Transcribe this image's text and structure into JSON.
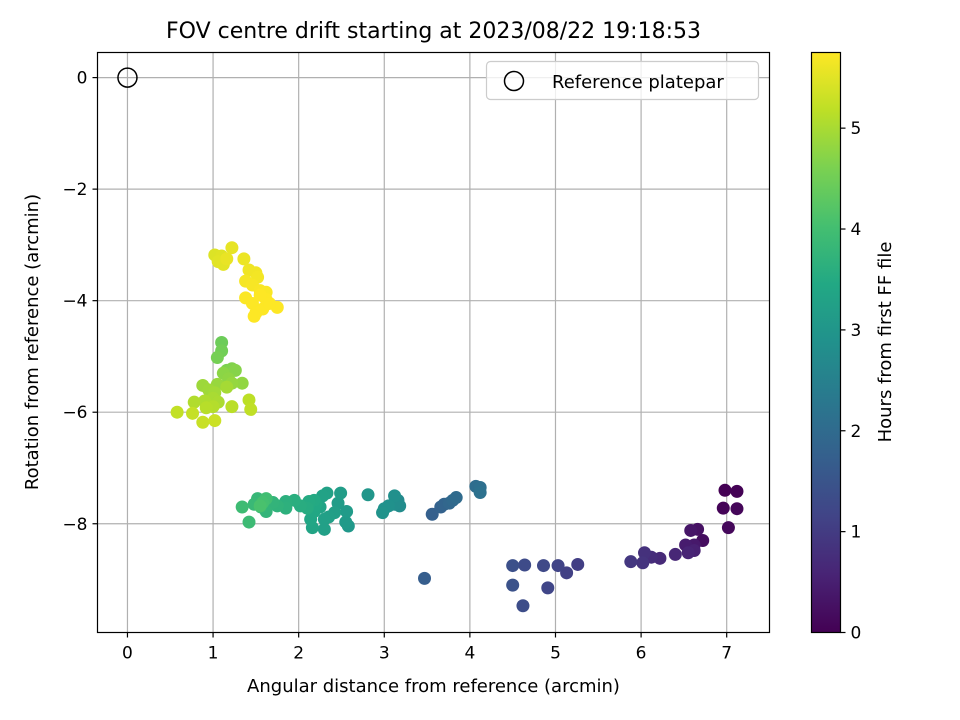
{
  "chart_data": {
    "type": "scatter",
    "title": "FOV centre drift starting at 2023/08/22 19:18:53",
    "xlabel": "Angular distance from reference (arcmin)",
    "ylabel": "Rotation from reference (arcmin)",
    "xlim": [
      -0.35,
      7.5
    ],
    "ylim": [
      -9.95,
      0.45
    ],
    "xticks": [
      0,
      1,
      2,
      3,
      4,
      5,
      6,
      7
    ],
    "yticks": [
      0,
      -2,
      -4,
      -6,
      -8
    ],
    "grid": true,
    "legend": {
      "position": "top-right",
      "entries": [
        "Reference platepar"
      ]
    },
    "colorbar": {
      "label": "Hours from first FF file",
      "min": 0,
      "max": 5.75,
      "ticks": [
        0,
        1,
        2,
        3,
        4,
        5
      ],
      "colormap": "viridis"
    },
    "reference_point": {
      "x": 0,
      "y": 0
    },
    "points": [
      [
        6.98,
        -7.4,
        0.0
      ],
      [
        7.12,
        -7.42,
        0.02
      ],
      [
        6.96,
        -7.72,
        0.05
      ],
      [
        7.12,
        -7.73,
        0.08
      ],
      [
        7.02,
        -8.07,
        0.12
      ],
      [
        6.72,
        -8.3,
        0.2
      ],
      [
        6.66,
        -8.1,
        0.27
      ],
      [
        6.58,
        -8.12,
        0.33
      ],
      [
        6.62,
        -8.38,
        0.4
      ],
      [
        6.52,
        -8.38,
        0.45
      ],
      [
        6.62,
        -8.48,
        0.52
      ],
      [
        6.55,
        -8.52,
        0.57
      ],
      [
        6.4,
        -8.55,
        0.62
      ],
      [
        6.22,
        -8.62,
        0.68
      ],
      [
        6.12,
        -8.6,
        0.74
      ],
      [
        6.04,
        -8.52,
        0.8
      ],
      [
        6.02,
        -8.7,
        0.86
      ],
      [
        5.88,
        -8.68,
        0.92
      ],
      [
        5.26,
        -8.73,
        1.05
      ],
      [
        5.13,
        -8.88,
        1.1
      ],
      [
        5.03,
        -8.75,
        1.15
      ],
      [
        4.91,
        -9.15,
        1.2
      ],
      [
        4.86,
        -8.75,
        1.25
      ],
      [
        4.64,
        -8.74,
        1.3
      ],
      [
        4.62,
        -9.47,
        1.35
      ],
      [
        4.5,
        -8.75,
        1.4
      ],
      [
        4.5,
        -9.1,
        1.45
      ],
      [
        3.47,
        -8.98,
        1.7
      ],
      [
        3.56,
        -7.83,
        1.75
      ],
      [
        3.66,
        -7.7,
        1.8
      ],
      [
        3.7,
        -7.65,
        1.85
      ],
      [
        3.76,
        -7.63,
        1.9
      ],
      [
        3.8,
        -7.58,
        1.95
      ],
      [
        3.84,
        -7.53,
        2.0
      ],
      [
        4.07,
        -7.33,
        2.05
      ],
      [
        4.12,
        -7.35,
        2.1
      ],
      [
        4.12,
        -7.44,
        2.15
      ],
      [
        3.16,
        -7.58,
        2.7
      ],
      [
        3.18,
        -7.68,
        2.75
      ],
      [
        3.12,
        -7.65,
        2.8
      ],
      [
        3.12,
        -7.5,
        2.85
      ],
      [
        3.05,
        -7.68,
        2.88
      ],
      [
        3.0,
        -7.73,
        2.9
      ],
      [
        2.98,
        -7.8,
        2.93
      ],
      [
        2.81,
        -7.48,
        3.0
      ],
      [
        2.58,
        -8.04,
        3.05
      ],
      [
        2.55,
        -7.97,
        3.1
      ],
      [
        2.56,
        -7.78,
        3.12
      ],
      [
        2.46,
        -7.63,
        3.15
      ],
      [
        2.49,
        -7.45,
        3.18
      ],
      [
        2.42,
        -7.8,
        3.2
      ],
      [
        2.35,
        -7.88,
        3.22
      ],
      [
        2.3,
        -7.92,
        3.24
      ],
      [
        2.3,
        -8.1,
        3.26
      ],
      [
        2.33,
        -7.45,
        3.28
      ],
      [
        2.28,
        -7.5,
        3.3
      ],
      [
        2.25,
        -7.7,
        3.33
      ],
      [
        2.16,
        -8.07,
        3.36
      ],
      [
        2.14,
        -7.92,
        3.4
      ],
      [
        2.18,
        -7.78,
        3.42
      ],
      [
        2.2,
        -7.65,
        3.45
      ],
      [
        2.18,
        -7.58,
        3.48
      ],
      [
        2.12,
        -7.6,
        3.5
      ],
      [
        2.1,
        -7.72,
        3.53
      ],
      [
        2.02,
        -7.68,
        3.56
      ],
      [
        1.95,
        -7.58,
        3.6
      ],
      [
        1.85,
        -7.6,
        3.63
      ],
      [
        1.85,
        -7.72,
        3.66
      ],
      [
        1.75,
        -7.68,
        3.7
      ],
      [
        1.7,
        -7.62,
        3.73
      ],
      [
        1.62,
        -7.78,
        3.76
      ],
      [
        1.56,
        -7.7,
        3.8
      ],
      [
        1.52,
        -7.55,
        3.83
      ],
      [
        1.48,
        -7.65,
        3.86
      ],
      [
        1.42,
        -7.97,
        3.9
      ],
      [
        1.34,
        -7.7,
        3.93
      ],
      [
        1.62,
        -7.55,
        3.98
      ],
      [
        1.58,
        -7.62,
        4.02
      ],
      [
        1.55,
        -7.68,
        4.08
      ],
      [
        1.1,
        -4.75,
        4.45
      ],
      [
        1.1,
        -4.9,
        4.5
      ],
      [
        1.05,
        -5.02,
        4.55
      ],
      [
        1.16,
        -5.25,
        4.6
      ],
      [
        1.22,
        -5.22,
        4.65
      ],
      [
        1.26,
        -5.25,
        4.7
      ],
      [
        1.12,
        -5.3,
        4.75
      ],
      [
        1.18,
        -5.4,
        4.78
      ],
      [
        1.34,
        -5.48,
        4.8
      ],
      [
        1.22,
        -5.48,
        4.83
      ],
      [
        1.05,
        -5.5,
        4.86
      ],
      [
        0.88,
        -5.52,
        4.9
      ],
      [
        0.95,
        -5.6,
        4.92
      ],
      [
        1.02,
        -5.65,
        4.95
      ],
      [
        1.16,
        -5.55,
        4.97
      ],
      [
        1.0,
        -5.75,
        5.0
      ],
      [
        1.06,
        -5.82,
        5.02
      ],
      [
        0.9,
        -5.8,
        5.05
      ],
      [
        0.78,
        -5.82,
        5.07
      ],
      [
        1.0,
        -5.9,
        5.1
      ],
      [
        0.92,
        -5.92,
        5.12
      ],
      [
        1.22,
        -5.9,
        5.15
      ],
      [
        1.42,
        -5.78,
        5.17
      ],
      [
        1.44,
        -5.95,
        5.2
      ],
      [
        0.58,
        -6.0,
        5.22
      ],
      [
        0.76,
        -6.02,
        5.25
      ],
      [
        0.88,
        -6.18,
        5.27
      ],
      [
        1.02,
        -6.15,
        5.3
      ],
      [
        1.02,
        -3.18,
        5.45
      ],
      [
        1.1,
        -3.2,
        5.48
      ],
      [
        1.06,
        -3.3,
        5.5
      ],
      [
        1.12,
        -3.35,
        5.52
      ],
      [
        1.22,
        -3.05,
        5.55
      ],
      [
        1.16,
        -3.25,
        5.57
      ],
      [
        1.36,
        -3.25,
        5.6
      ],
      [
        1.42,
        -3.45,
        5.62
      ],
      [
        1.5,
        -3.5,
        5.64
      ],
      [
        1.52,
        -3.58,
        5.66
      ],
      [
        1.38,
        -3.65,
        5.68
      ],
      [
        1.46,
        -3.72,
        5.7
      ],
      [
        1.55,
        -3.82,
        5.71
      ],
      [
        1.62,
        -3.85,
        5.72
      ],
      [
        1.38,
        -3.95,
        5.73
      ],
      [
        1.46,
        -4.05,
        5.74
      ],
      [
        1.5,
        -4.22,
        5.74
      ],
      [
        1.58,
        -4.15,
        5.75
      ],
      [
        1.48,
        -4.28,
        5.75
      ],
      [
        1.62,
        -3.98,
        5.75
      ],
      [
        1.75,
        -4.12,
        5.75
      ],
      [
        1.66,
        -4.05,
        5.75
      ],
      [
        1.55,
        -3.9,
        5.75
      ]
    ]
  }
}
